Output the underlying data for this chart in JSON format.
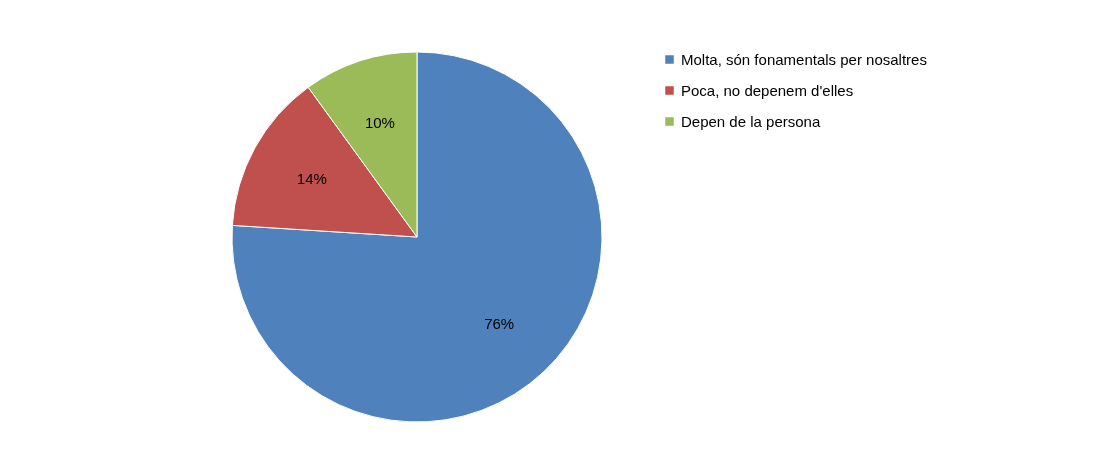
{
  "chart_data": {
    "type": "pie",
    "categories": [
      "Molta, són fonamentals per nosaltres",
      "Poca, no depenem d'elles",
      "Depen de la persona"
    ],
    "values": [
      76,
      14,
      10
    ],
    "colors": [
      "#4f81bd",
      "#c0504d",
      "#9bbb59"
    ],
    "value_labels": [
      "76%",
      "14%",
      "10%"
    ],
    "legend": "right"
  }
}
